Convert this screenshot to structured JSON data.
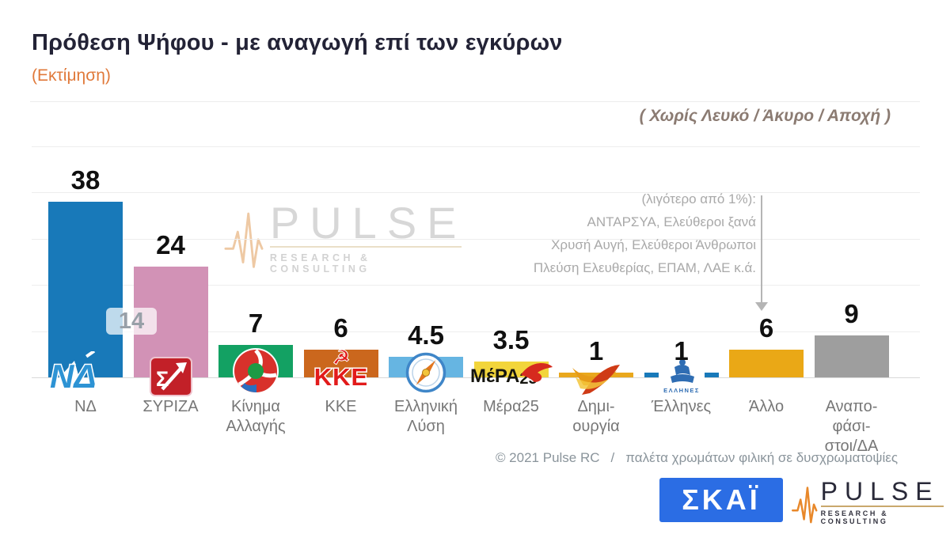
{
  "header": {
    "title": "Πρόθεση Ψήφου - με αναγωγή επί των εγκύρων",
    "subtitle": "(Εκτίμηση)",
    "filter_note": "( Χωρίς Λευκό / Άκυρο / Αποχή )"
  },
  "annotation": {
    "lines": [
      "(λιγότερο από 1%):",
      "ΑΝΤΑΡΣΥΑ, Ελεύθεροι ξανά",
      "Χρυσή Αυγή, Ελεύθεροι Άνθρωποι",
      "Πλεύση Ελευθερίας, ΕΠΑΜ, ΛΑΕ κ.ά."
    ]
  },
  "lead_badge": "14",
  "chart_data": {
    "type": "bar",
    "title": "Πρόθεση Ψήφου - με αναγωγή επί των εγκύρων (Εκτίμηση)",
    "xlabel": "",
    "ylabel": "",
    "ylim": [
      0,
      50
    ],
    "gridline_step": 10,
    "grid": true,
    "legend_position": "none",
    "categories": [
      "ΝΔ",
      "ΣΥΡΙΖΑ",
      "Κίνημα Αλλαγής",
      "ΚΚΕ",
      "Ελληνική Λύση",
      "Μέρα25",
      "Δημιουργία",
      "Έλληνες",
      "Άλλο",
      "Αναποφάσιστοι/ΔΑ"
    ],
    "values": [
      38,
      24,
      7,
      6,
      4.5,
      3.5,
      1,
      1,
      6,
      9
    ],
    "parties": [
      {
        "id": "nd",
        "name": "ΝΔ",
        "label_lines": [
          "ΝΔ"
        ],
        "value": 38,
        "display_value": "38",
        "color": "#1879b9",
        "logo": "nd-logo"
      },
      {
        "id": "syriza",
        "name": "ΣΥΡΙΖΑ",
        "label_lines": [
          "ΣΥΡΙΖΑ"
        ],
        "value": 24,
        "display_value": "24",
        "color": "#d292b6",
        "logo": "syriza-logo"
      },
      {
        "id": "kinal",
        "name": "Κίνημα Αλλαγής",
        "label_lines": [
          "Κίνημα",
          "Αλλαγής"
        ],
        "value": 7,
        "display_value": "7",
        "color": "#13a163",
        "logo": "kinal-logo"
      },
      {
        "id": "kke",
        "name": "ΚΚΕ",
        "label_lines": [
          "ΚΚΕ"
        ],
        "value": 6,
        "display_value": "6",
        "color": "#cb671d",
        "logo": "kke-logo"
      },
      {
        "id": "elliniki-lysi",
        "name": "Ελληνική Λύση",
        "label_lines": [
          "Ελληνική",
          "Λύση"
        ],
        "value": 4.5,
        "display_value": "4.5",
        "color": "#66b5e2",
        "logo": "elliniki-lysi-logo"
      },
      {
        "id": "mera25",
        "name": "Μέρα25",
        "label_lines": [
          "Μέρα25"
        ],
        "value": 3.5,
        "display_value": "3.5",
        "color": "#f2d53b",
        "logo": "mera25-logo"
      },
      {
        "id": "dimiourgia",
        "name": "Δημιουργία",
        "label_lines": [
          "Δημι-",
          "ουργία"
        ],
        "value": 1,
        "display_value": "1",
        "color": "#e9a81d",
        "logo": "dimiourgia-logo"
      },
      {
        "id": "ellines",
        "name": "Έλληνες",
        "label_lines": [
          "Έλληνες"
        ],
        "value": 1,
        "display_value": "1",
        "color": "#1879b9",
        "logo": "ellines-logo"
      },
      {
        "id": "allo",
        "name": "Άλλο",
        "label_lines": [
          "Άλλο"
        ],
        "value": 6,
        "display_value": "6",
        "color": "#eaa816",
        "logo": null
      },
      {
        "id": "undecided",
        "name": "Αναποφάσιστοι/ΔΑ",
        "label_lines": [
          "Αναπο-",
          "φάσι-",
          "στοι/ΔΑ"
        ],
        "value": 9,
        "display_value": "9",
        "color": "#9e9e9e",
        "logo": null
      }
    ]
  },
  "watermark": {
    "brand": "PULSE",
    "tagline": "RESEARCH & CONSULTING"
  },
  "footer": {
    "copyright": "© 2021 Pulse RC",
    "separator": "/",
    "palette_note": "παλέτα χρωμάτων φιλική σε δυσχρωματοψίες"
  },
  "logos": {
    "skai": "ΣΚΑΪ",
    "pulse": "PULSE",
    "pulse_tagline": "RESEARCH & CONSULTING"
  }
}
